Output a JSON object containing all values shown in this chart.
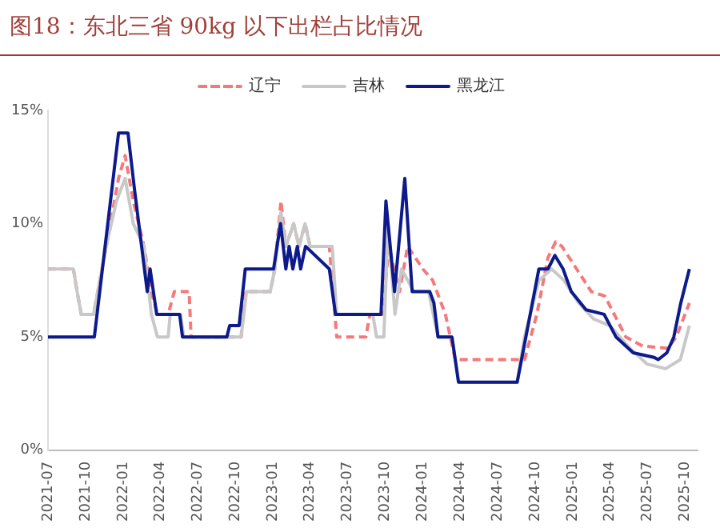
{
  "chart_data": {
    "type": "line",
    "title": "图18：东北三省 90kg 以下出栏占比情况",
    "series": [
      {
        "name": "辽宁",
        "color": "#f4797b",
        "line_style": "dashed",
        "x": [
          "2021-07-01",
          "2021-09-01",
          "2021-09-10",
          "2021-09-20",
          "2021-10-20",
          "2021-11-20",
          "2021-12-20",
          "2022-01-05",
          "2022-01-25",
          "2022-02-20",
          "2022-03-10",
          "2022-03-25",
          "2022-04-20",
          "2022-05-05",
          "2022-06-10",
          "2022-06-15",
          "2022-10-15",
          "2022-10-25",
          "2022-12-25",
          "2023-01-05",
          "2023-01-20",
          "2023-02-01",
          "2023-02-20",
          "2023-03-05",
          "2023-03-20",
          "2023-04-01",
          "2023-05-18",
          "2023-06-05",
          "2023-08-15",
          "2023-08-25",
          "2023-09-25",
          "2023-10-10",
          "2023-11-05",
          "2023-11-25",
          "2024-01-01",
          "2024-01-25",
          "2024-02-25",
          "2024-03-20",
          "2024-09-05",
          "2024-10-05",
          "2024-11-01",
          "2024-11-20",
          "2024-12-05",
          "2025-01-10",
          "2025-02-15",
          "2025-03-20",
          "2025-05-10",
          "2025-06-20",
          "2025-08-20",
          "2025-09-10",
          "2025-10-12"
        ],
        "values": [
          8,
          8,
          7,
          6,
          6,
          9,
          12,
          13,
          11,
          9,
          7,
          6,
          6,
          7,
          7,
          5,
          5,
          7,
          7,
          8,
          11,
          9,
          10,
          9,
          10,
          9,
          9,
          5,
          5,
          6,
          6,
          9,
          7,
          9,
          8,
          7.5,
          6,
          4,
          4,
          6,
          8.5,
          9.2,
          9,
          8,
          7,
          6.8,
          5,
          4.6,
          4.5,
          5,
          6.5
        ]
      },
      {
        "name": "吉林",
        "color": "#c8c8c8",
        "line_style": "solid",
        "x": [
          "2021-07-01",
          "2021-09-01",
          "2021-09-10",
          "2021-09-20",
          "2021-10-20",
          "2021-11-20",
          "2021-12-15",
          "2022-01-05",
          "2022-01-25",
          "2022-02-20",
          "2022-03-10",
          "2022-03-25",
          "2022-04-20",
          "2022-04-25",
          "2022-05-20",
          "2022-05-28",
          "2022-10-15",
          "2022-10-28",
          "2022-12-25",
          "2023-01-05",
          "2023-01-20",
          "2023-02-01",
          "2023-02-20",
          "2023-03-05",
          "2023-03-20",
          "2023-04-01",
          "2023-05-25",
          "2023-06-05",
          "2023-09-01",
          "2023-09-10",
          "2023-09-28",
          "2023-10-08",
          "2023-10-25",
          "2023-11-10",
          "2023-12-10",
          "2024-01-15",
          "2024-02-07",
          "2024-03-12",
          "2024-03-28",
          "2024-08-18",
          "2024-09-05",
          "2024-10-10",
          "2024-11-10",
          "2024-12-10",
          "2025-01-15",
          "2025-02-20",
          "2025-04-01",
          "2025-05-20",
          "2025-07-01",
          "2025-08-15",
          "2025-09-20",
          "2025-10-12"
        ],
        "values": [
          8,
          8,
          7,
          6,
          6,
          9,
          11,
          12,
          10,
          9,
          6,
          5,
          5,
          6,
          6,
          5,
          5,
          7,
          7,
          8,
          10.5,
          9,
          10,
          9,
          10,
          9,
          9,
          6,
          6,
          5,
          5,
          10,
          6,
          8,
          7,
          7,
          5,
          5,
          3,
          3,
          5,
          7.5,
          8,
          7.5,
          6.5,
          5.8,
          5.5,
          4.5,
          3.8,
          3.6,
          4,
          5.5
        ]
      },
      {
        "name": "黑龙江",
        "color": "#0c1a8c",
        "line_style": "solid",
        "x": [
          "2021-07-01",
          "2021-10-22",
          "2021-12-20",
          "2022-01-12",
          "2022-01-28",
          "2022-02-28",
          "2022-03-07",
          "2022-03-23",
          "2022-05-18",
          "2022-05-25",
          "2022-09-10",
          "2022-09-17",
          "2022-10-10",
          "2022-10-25",
          "2023-01-02",
          "2023-01-19",
          "2023-02-01",
          "2023-02-09",
          "2023-02-18",
          "2023-03-01",
          "2023-03-09",
          "2023-03-21",
          "2023-05-18",
          "2023-06-02",
          "2023-09-21",
          "2023-10-03",
          "2023-10-24",
          "2023-11-18",
          "2023-12-06",
          "2024-01-18",
          "2024-01-28",
          "2024-02-07",
          "2024-03-12",
          "2024-03-28",
          "2024-08-18",
          "2024-09-03",
          "2024-10-10",
          "2024-11-01",
          "2024-11-18",
          "2024-12-08",
          "2024-12-28",
          "2025-02-02",
          "2025-03-18",
          "2025-04-16",
          "2025-05-28",
          "2025-07-18",
          "2025-07-28",
          "2025-08-18",
          "2025-09-04",
          "2025-09-21",
          "2025-10-12"
        ],
        "values": [
          5,
          5,
          14,
          14,
          11.5,
          7,
          8,
          6,
          6,
          5,
          5,
          5.5,
          5.5,
          8,
          8,
          10,
          8,
          9,
          8,
          9,
          8,
          9,
          8,
          6,
          6,
          11,
          7,
          12,
          7,
          7,
          6.5,
          5,
          5,
          3,
          3,
          4.5,
          8,
          8,
          8.6,
          8,
          7,
          6.2,
          6,
          5,
          4.3,
          4.1,
          4,
          4.3,
          5,
          6.5,
          8
        ]
      }
    ],
    "xlim": [
      "2021-07",
      "2025-11"
    ],
    "xticks": [
      "2021-07",
      "2021-10",
      "2022-01",
      "2022-04",
      "2022-07",
      "2022-10",
      "2023-01",
      "2023-04",
      "2023-07",
      "2023-10",
      "2024-01",
      "2024-04",
      "2024-07",
      "2024-10",
      "2025-01",
      "2025-04",
      "2025-07",
      "2025-10"
    ],
    "ylim": [
      0,
      15
    ],
    "yticks": [
      {
        "value": 0,
        "label": "0%"
      },
      {
        "value": 5,
        "label": "5%"
      },
      {
        "value": 10,
        "label": "10%"
      },
      {
        "value": 15,
        "label": "15%"
      }
    ],
    "grid": false,
    "legend": "top",
    "marker": "none"
  }
}
